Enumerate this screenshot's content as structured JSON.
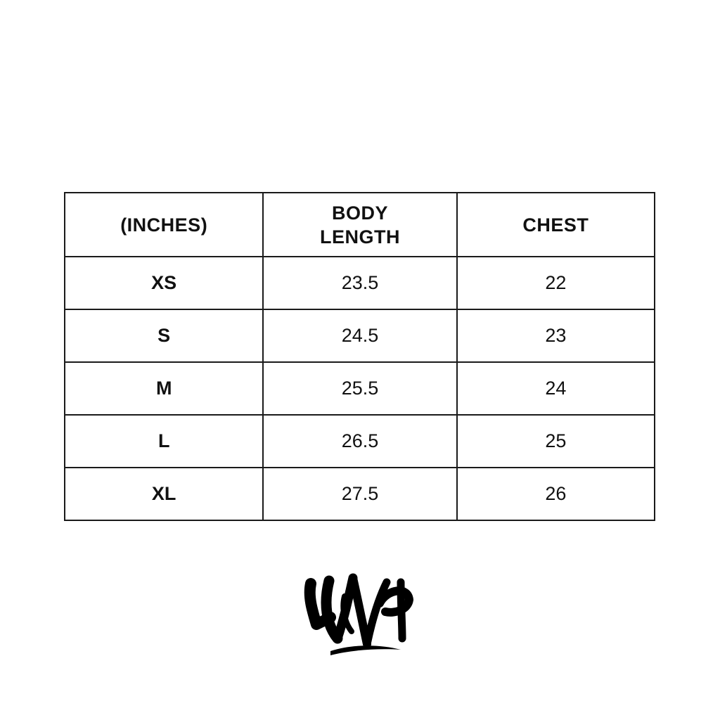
{
  "table": {
    "headers": [
      "(INCHES)",
      "BODY\nLENGTH",
      "CHEST"
    ],
    "header_lines": {
      "unit": "(INCHES)",
      "body_1": "BODY",
      "body_2": "LENGTH",
      "chest": "CHEST"
    },
    "rows": [
      {
        "size": "XS",
        "body_length": "23.5",
        "chest": "22"
      },
      {
        "size": "S",
        "body_length": "24.5",
        "chest": "23"
      },
      {
        "size": "M",
        "body_length": "25.5",
        "chest": "24"
      },
      {
        "size": "L",
        "body_length": "26.5",
        "chest": "25"
      },
      {
        "size": "XL",
        "body_length": "27.5",
        "chest": "26"
      }
    ]
  },
  "logo": {
    "icon": "graffiti-logo",
    "color": "#000000"
  }
}
